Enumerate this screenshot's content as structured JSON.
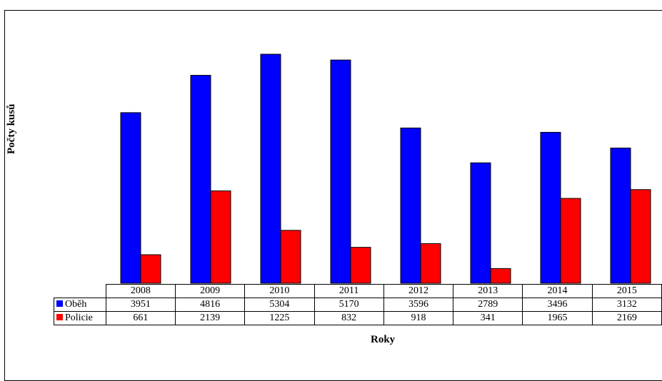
{
  "chart_data": {
    "type": "bar",
    "title": "",
    "xlabel": "Roky",
    "ylabel": "Počty kusů",
    "categories": [
      "2008",
      "2009",
      "2010",
      "2011",
      "2012",
      "2013",
      "2014",
      "2015"
    ],
    "series": [
      {
        "name": "Oběh",
        "color": "#0000ff",
        "values": [
          3951,
          4816,
          5304,
          5170,
          3596,
          2789,
          3496,
          3132
        ]
      },
      {
        "name": "Policie",
        "color": "#ff0000",
        "values": [
          661,
          2139,
          1225,
          832,
          918,
          341,
          1965,
          2169
        ]
      }
    ],
    "ylim": [
      0,
      5304
    ],
    "grid": false,
    "legend": "data table"
  }
}
